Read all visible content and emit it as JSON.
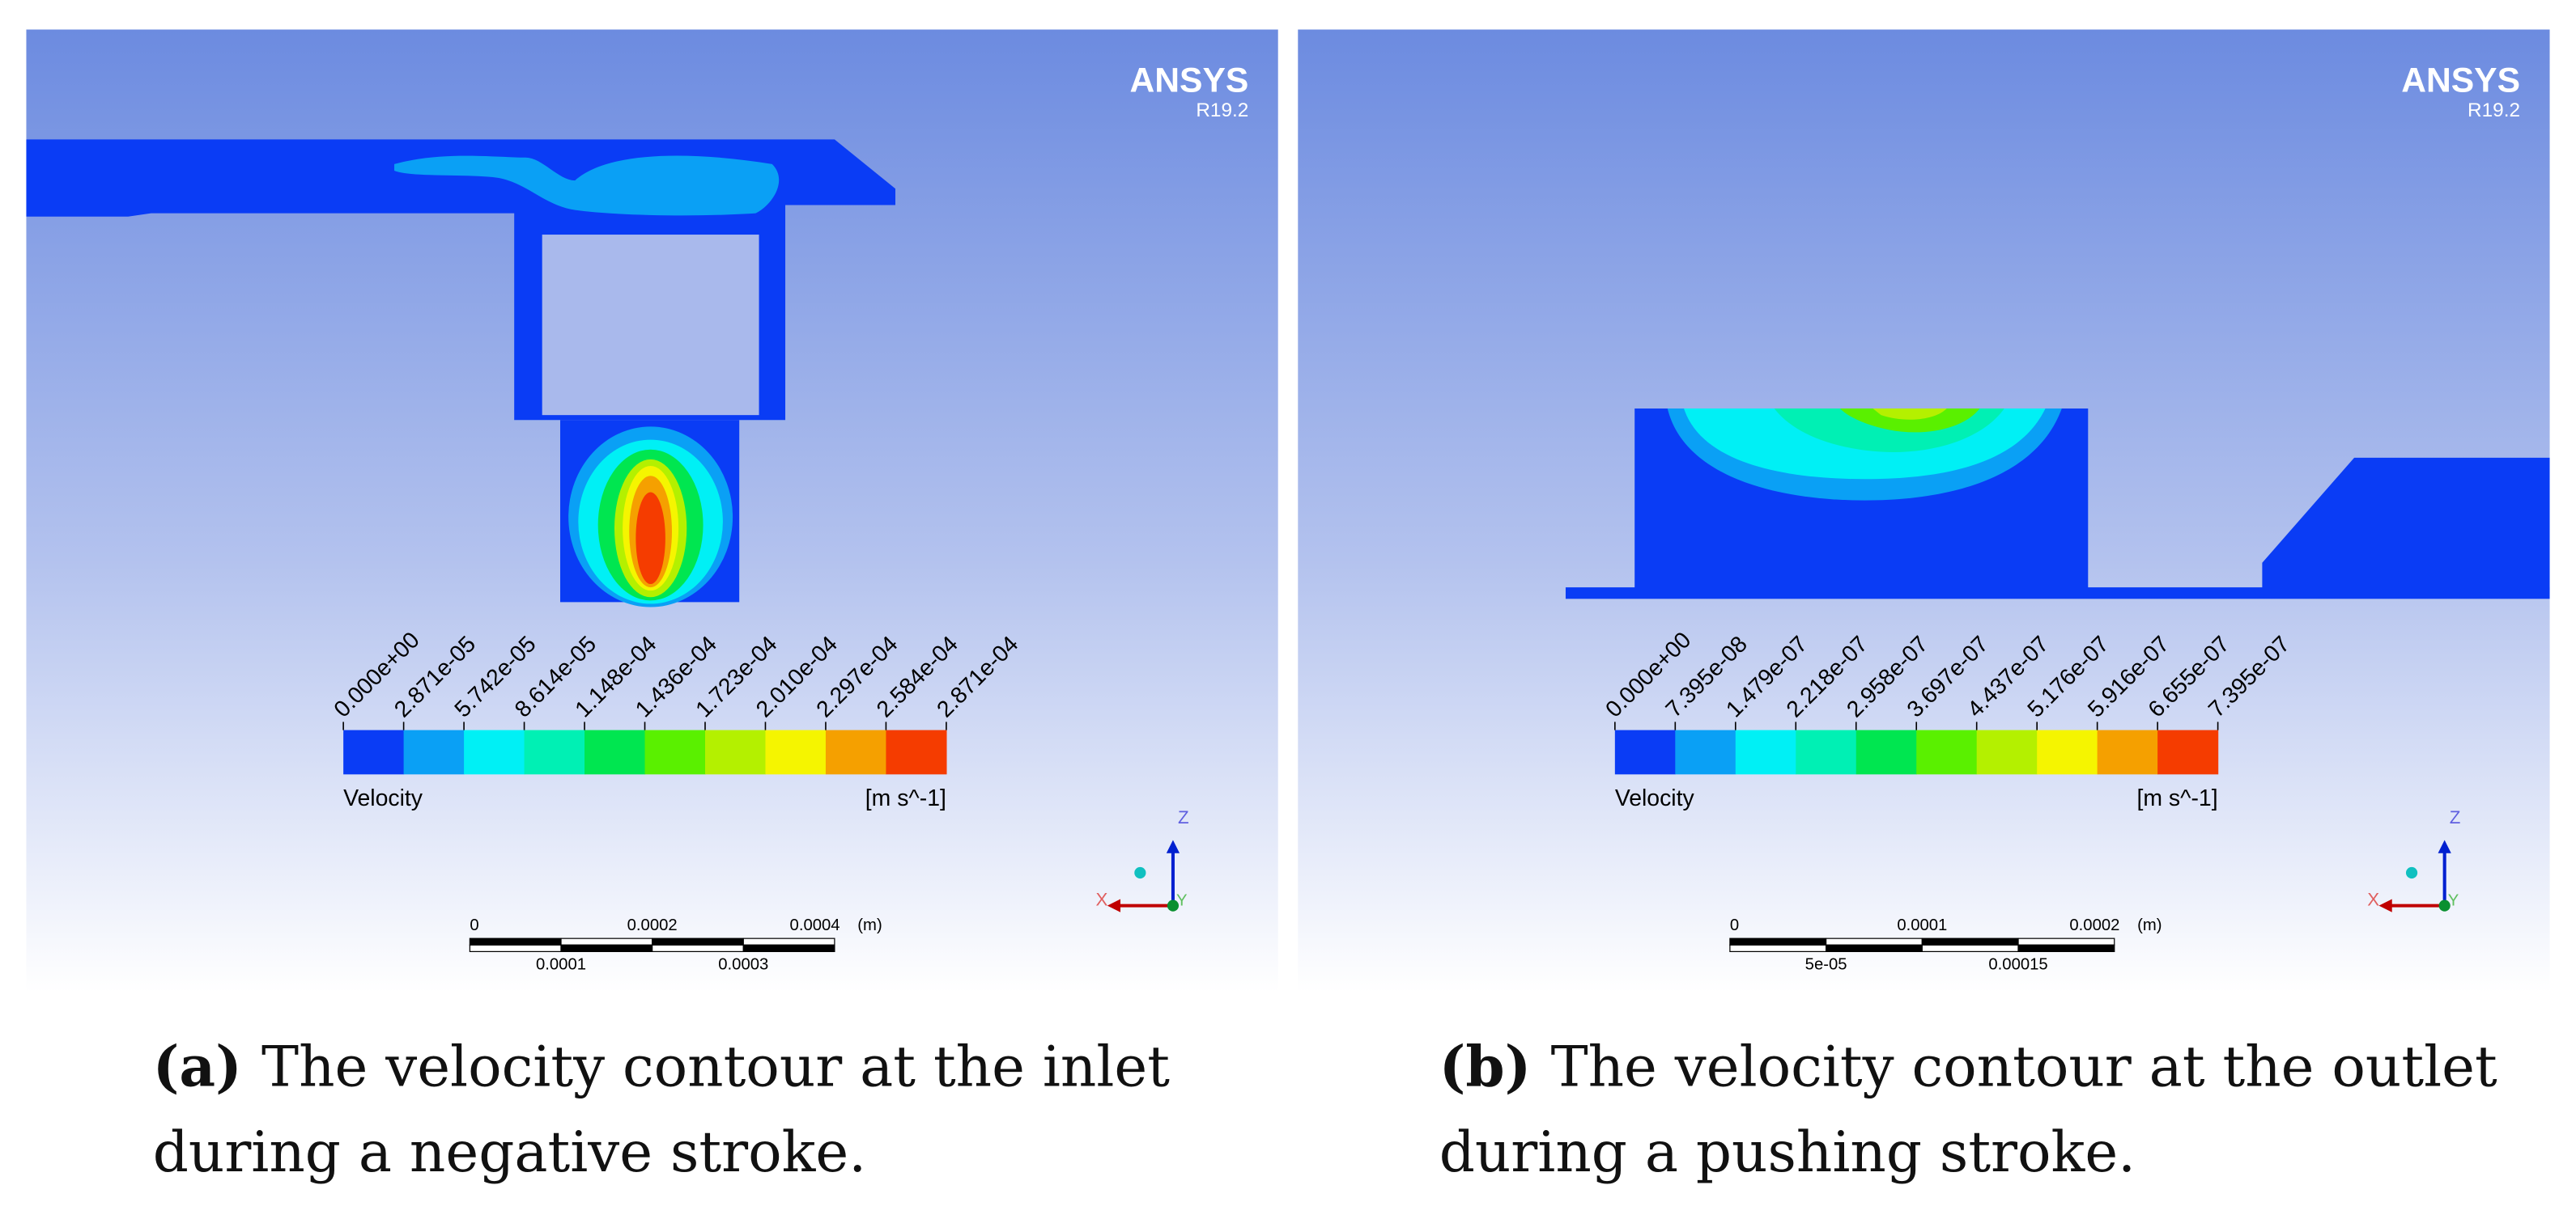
{
  "panels": [
    {
      "brand": "ANSYS",
      "version": "R19.2",
      "legend": {
        "ticks": [
          "0.000e+00",
          "2.871e-05",
          "5.742e-05",
          "8.614e-05",
          "1.148e-04",
          "1.436e-04",
          "1.723e-04",
          "2.010e-04",
          "2.297e-04",
          "2.584e-04",
          "2.871e-04"
        ],
        "colors": [
          "#0a3cf5",
          "#0aa0f5",
          "#00f0f5",
          "#00f0b4",
          "#00e650",
          "#5af000",
          "#b4f000",
          "#f5f500",
          "#f5a000",
          "#f53c00"
        ],
        "title": "Velocity",
        "unit": "[m s^-1]"
      },
      "scale": {
        "top": [
          "0",
          "0.0002",
          "0.0004",
          "(m)"
        ],
        "bottom": [
          "0.0001",
          "0.0003"
        ]
      },
      "axes": {
        "z": "Z",
        "x": "X",
        "y": "Y"
      },
      "caption": {
        "label": "(a)",
        "lines": [
          "The velocity contour at the inlet",
          "during a negative stroke."
        ]
      }
    },
    {
      "brand": "ANSYS",
      "version": "R19.2",
      "legend": {
        "ticks": [
          "0.000e+00",
          "7.395e-08",
          "1.479e-07",
          "2.218e-07",
          "2.958e-07",
          "3.697e-07",
          "4.437e-07",
          "5.176e-07",
          "5.916e-07",
          "6.655e-07",
          "7.395e-07"
        ],
        "colors": [
          "#0a3cf5",
          "#0aa0f5",
          "#00f0f5",
          "#00f0b4",
          "#00e650",
          "#5af000",
          "#b4f000",
          "#f5f500",
          "#f5a000",
          "#f53c00"
        ],
        "title": "Velocity",
        "unit": "[m s^-1]"
      },
      "scale": {
        "top": [
          "0",
          "0.0001",
          "0.0002",
          "(m)"
        ],
        "bottom": [
          "5e-05",
          "0.00015"
        ]
      },
      "axes": {
        "z": "Z",
        "x": "X",
        "y": "Y"
      },
      "caption": {
        "label": "(b)",
        "lines": [
          "The velocity contour at the outlet",
          "during a pushing stroke."
        ]
      }
    }
  ]
}
